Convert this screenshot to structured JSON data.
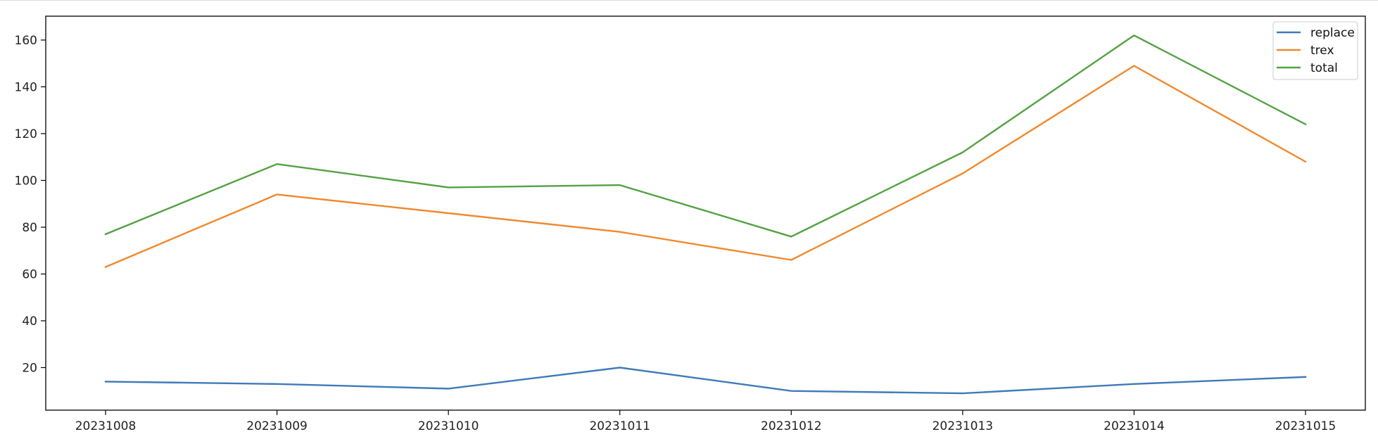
{
  "chart_data": {
    "type": "line",
    "title": "",
    "xlabel": "",
    "ylabel": "",
    "x": [
      "20231008",
      "20231009",
      "20231010",
      "20231011",
      "20231012",
      "20231013",
      "20231014",
      "20231015"
    ],
    "yticks": [
      20,
      40,
      60,
      80,
      100,
      120,
      140,
      160
    ],
    "ylim": [
      1.8,
      170.2
    ],
    "grid": false,
    "legend_position": "top-right",
    "series": [
      {
        "name": "replace",
        "color": "#3f7ab8",
        "values": [
          14,
          13,
          11,
          20,
          10,
          9,
          13,
          16
        ]
      },
      {
        "name": "trex",
        "color": "#f0892d",
        "values": [
          63,
          94,
          86,
          78,
          66,
          103,
          149,
          108
        ]
      },
      {
        "name": "total",
        "color": "#54a244",
        "values": [
          77,
          107,
          97,
          98,
          76,
          112,
          162,
          124
        ]
      }
    ]
  }
}
